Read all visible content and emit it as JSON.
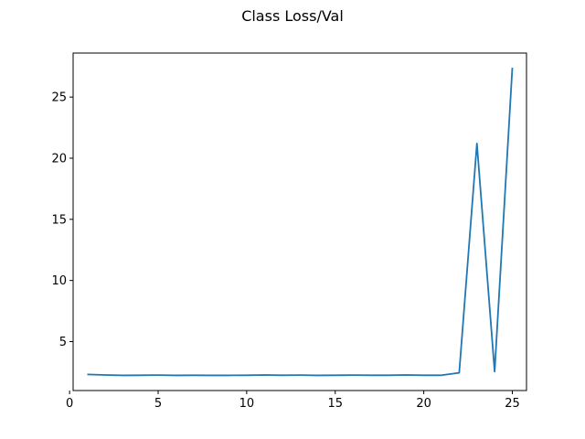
{
  "chart_data": {
    "type": "line",
    "title": "Class Loss/Val",
    "xlabel": "",
    "ylabel": "",
    "xlim": [
      0.2,
      25.8
    ],
    "ylim": [
      1.0,
      28.6
    ],
    "xticks": [
      0,
      5,
      10,
      15,
      20,
      25
    ],
    "yticks": [
      5,
      10,
      15,
      20,
      25
    ],
    "grid": false,
    "legend": "none",
    "series": [
      {
        "color": "#1f77b4",
        "x": [
          1,
          2,
          3,
          4,
          5,
          6,
          7,
          8,
          9,
          10,
          11,
          12,
          13,
          14,
          15,
          16,
          17,
          18,
          19,
          20,
          21,
          22,
          23,
          24,
          25
        ],
        "y": [
          2.32,
          2.27,
          2.24,
          2.25,
          2.26,
          2.24,
          2.25,
          2.24,
          2.24,
          2.25,
          2.27,
          2.25,
          2.26,
          2.24,
          2.25,
          2.26,
          2.25,
          2.25,
          2.27,
          2.25,
          2.25,
          2.45,
          21.2,
          2.55,
          27.4
        ]
      }
    ]
  }
}
